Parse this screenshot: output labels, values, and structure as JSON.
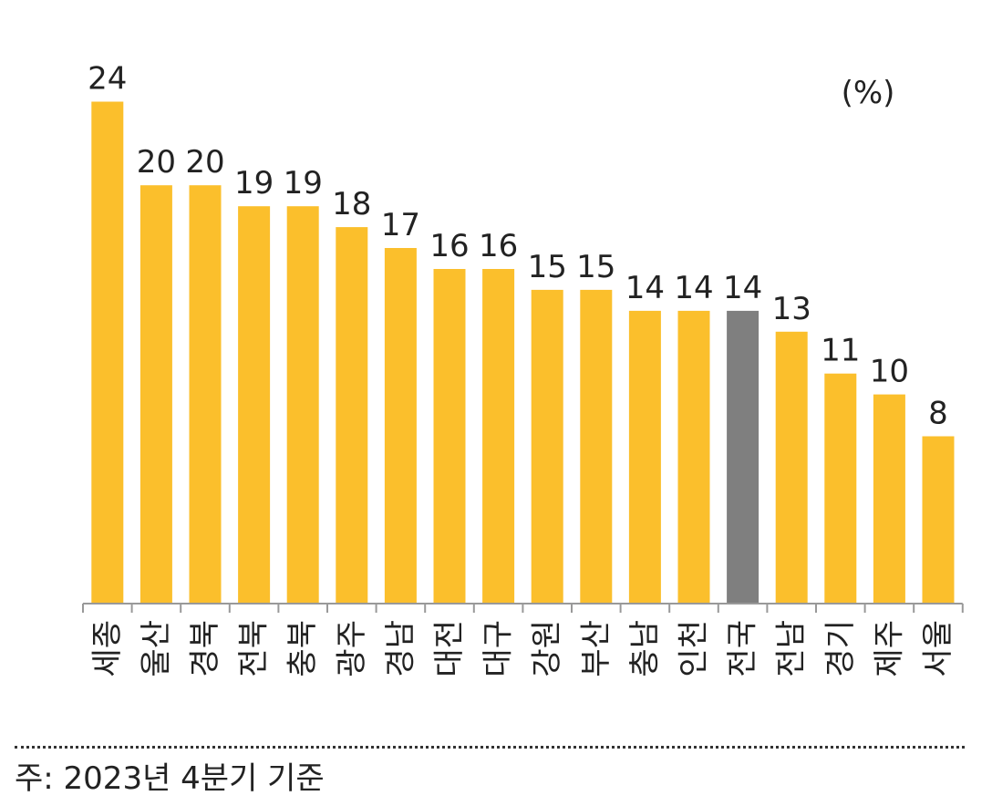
{
  "chart_data": {
    "type": "bar",
    "unit_label": "(%)",
    "categories": [
      "세종",
      "울산",
      "경북",
      "전북",
      "충북",
      "광주",
      "경남",
      "대전",
      "대구",
      "강원",
      "부산",
      "충남",
      "인천",
      "전국",
      "전남",
      "경기",
      "제주",
      "서울"
    ],
    "values": [
      24,
      20,
      20,
      19,
      19,
      18,
      17,
      16,
      16,
      15,
      15,
      14,
      14,
      14,
      13,
      11,
      10,
      8
    ],
    "highlight_category": "전국",
    "ylim": [
      0,
      24.5
    ],
    "colors": {
      "bar": "#FBBF2C",
      "highlight": "#7F7F7F",
      "axis": "#999999"
    }
  },
  "footnote": "주: 2023년 4분기 기준"
}
